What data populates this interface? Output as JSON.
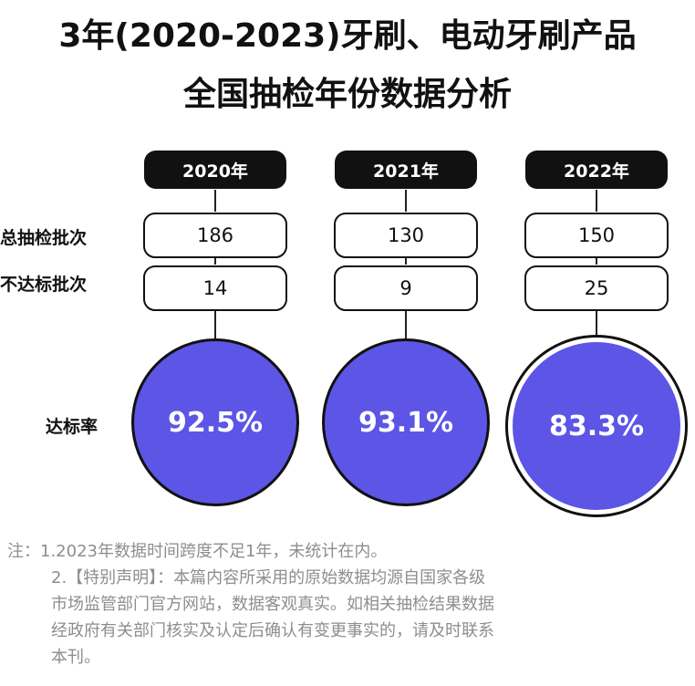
{
  "title": {
    "line1": "3年(2020-2023)牙刷、电动牙刷产品",
    "line2": "全国抽检年份数据分析"
  },
  "row_labels": {
    "total": "总抽检批次",
    "failed": "不达标批次",
    "rate": "达标率"
  },
  "chart_data": {
    "type": "table",
    "title": "3年(2020-2023)牙刷、电动牙刷产品 全国抽检年份数据分析",
    "categories": [
      "2020年",
      "2021年",
      "2022年"
    ],
    "series": [
      {
        "name": "总抽检批次",
        "values": [
          186,
          130,
          150
        ]
      },
      {
        "name": "不达标批次",
        "values": [
          14,
          9,
          25
        ]
      },
      {
        "name": "达标率",
        "values": [
          "92.5%",
          "93.1%",
          "83.3%"
        ]
      }
    ]
  },
  "notes": {
    "line1": "注：1.2023年数据时间跨度不足1年，未统计在内。",
    "line2": "2.【特别声明】：本篇内容所采用的原始数据均源自国家各级",
    "line3": "市场监管部门官方网站，数据客观真实。如相关抽检结果数据",
    "line4": "经政府有关部门核实及认定后确认有变更事实的，请及时联系",
    "line5": "本刊。"
  },
  "colors": {
    "circle_fill": "#5c55e6",
    "pill_fill": "#111111",
    "note_text": "#8e8e8e"
  }
}
